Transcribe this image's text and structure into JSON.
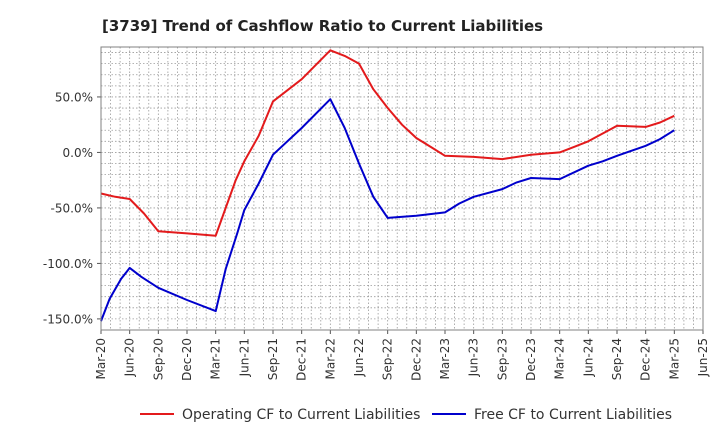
{
  "chart_data": {
    "type": "line",
    "title": "[3739]  Trend of Cashflow Ratio to Current Liabilities",
    "xlabel": "",
    "ylabel": "",
    "ylim": [
      -160,
      95
    ],
    "y_ticks": [
      {
        "value": 50,
        "label": "50.0%"
      },
      {
        "value": 0,
        "label": "0.0%"
      },
      {
        "value": -50,
        "label": "-50.0%"
      },
      {
        "value": -100,
        "label": "-100.0%"
      },
      {
        "value": -150,
        "label": "-150.0%"
      }
    ],
    "x_tick_labels": [
      "Mar-20",
      "Jun-20",
      "Sep-20",
      "Dec-20",
      "Mar-21",
      "Jun-21",
      "Sep-21",
      "Dec-21",
      "Mar-22",
      "Jun-22",
      "Sep-22",
      "Dec-22",
      "Mar-23",
      "Jun-23",
      "Sep-23",
      "Dec-23",
      "Mar-24",
      "Jun-24",
      "Sep-24",
      "Dec-24",
      "Mar-25",
      "Jun-25"
    ],
    "grid": true,
    "legend_position": "bottom",
    "series": [
      {
        "name": "Operating CF to Current Liabilities",
        "color": "#e31a1c",
        "points": [
          [
            0,
            -37
          ],
          [
            0.5,
            -40
          ],
          [
            1,
            -42
          ],
          [
            1.5,
            -55
          ],
          [
            2,
            -71
          ],
          [
            3,
            -73
          ],
          [
            4,
            -75
          ],
          [
            4.35,
            -50
          ],
          [
            4.7,
            -25
          ],
          [
            5,
            -8
          ],
          [
            5.5,
            15
          ],
          [
            6,
            46
          ],
          [
            7,
            66
          ],
          [
            8,
            92
          ],
          [
            8.5,
            87
          ],
          [
            9,
            80
          ],
          [
            9.5,
            57
          ],
          [
            10,
            40
          ],
          [
            10.5,
            25
          ],
          [
            11,
            13
          ],
          [
            11.5,
            5
          ],
          [
            12,
            -3
          ],
          [
            13,
            -4
          ],
          [
            14,
            -6
          ],
          [
            15,
            -2
          ],
          [
            16,
            0
          ],
          [
            16.5,
            5
          ],
          [
            17,
            10
          ],
          [
            18,
            24
          ],
          [
            19,
            23
          ],
          [
            19.5,
            27
          ],
          [
            20,
            33
          ]
        ]
      },
      {
        "name": "Free CF to Current Liabilities",
        "color": "#0000cc",
        "points": [
          [
            0,
            -152
          ],
          [
            0.3,
            -132
          ],
          [
            0.7,
            -114
          ],
          [
            1,
            -104
          ],
          [
            1.4,
            -112
          ],
          [
            2,
            -122
          ],
          [
            3,
            -133
          ],
          [
            4,
            -143
          ],
          [
            4.35,
            -105
          ],
          [
            4.75,
            -73
          ],
          [
            5,
            -52
          ],
          [
            5.5,
            -28
          ],
          [
            6,
            -2
          ],
          [
            7,
            22
          ],
          [
            8,
            48
          ],
          [
            8.5,
            22
          ],
          [
            9,
            -10
          ],
          [
            9.5,
            -40
          ],
          [
            10,
            -59
          ],
          [
            11,
            -57
          ],
          [
            12,
            -54
          ],
          [
            12.5,
            -46
          ],
          [
            13,
            -40
          ],
          [
            14,
            -33
          ],
          [
            14.5,
            -27
          ],
          [
            15,
            -23
          ],
          [
            16,
            -24
          ],
          [
            17,
            -12
          ],
          [
            17.5,
            -8
          ],
          [
            18,
            -3
          ],
          [
            19,
            6
          ],
          [
            19.5,
            12
          ],
          [
            20,
            20
          ]
        ]
      }
    ]
  }
}
